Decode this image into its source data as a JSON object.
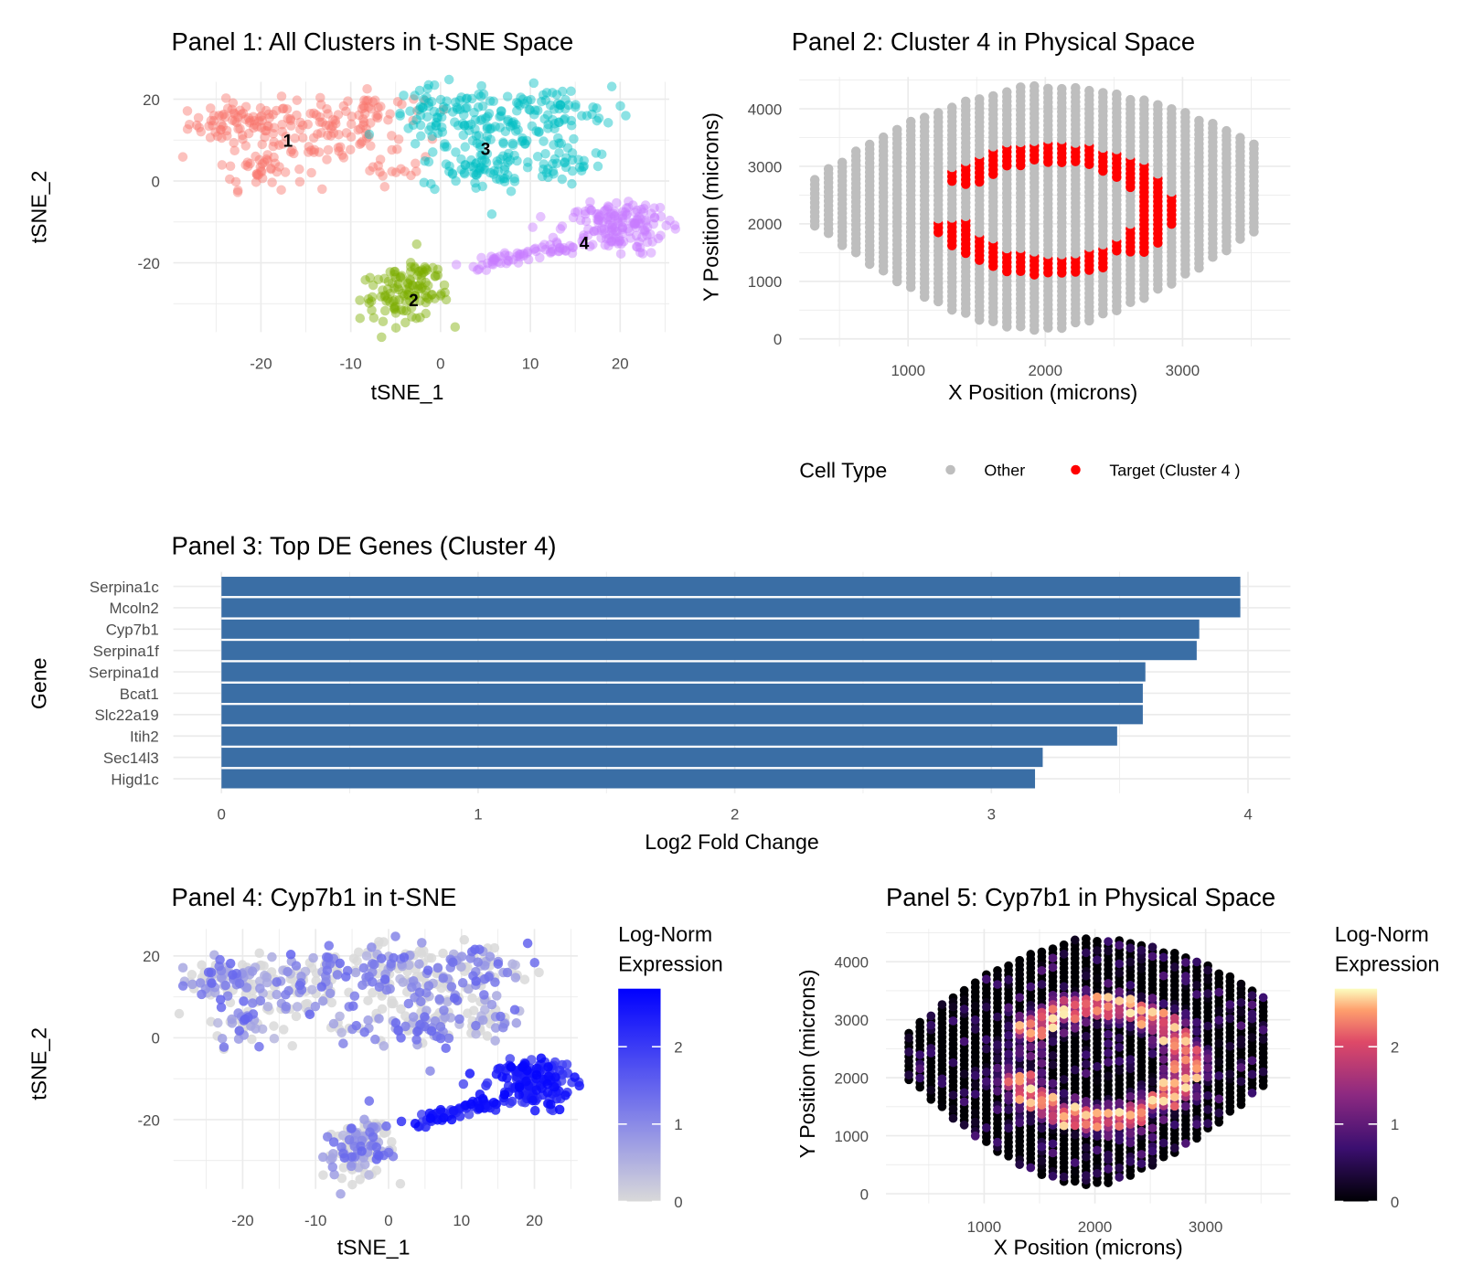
{
  "chart_data": [
    {
      "type": "scatter",
      "title": "Panel 1: All Clusters in t-SNE Space",
      "xlabel": "tSNE_1",
      "ylabel": "tSNE_2",
      "xlim": [
        -28,
        24
      ],
      "ylim": [
        -37,
        26
      ],
      "xticks": [
        "-20",
        "-10",
        "0",
        "10",
        "20"
      ],
      "yticks": [
        "20",
        "0",
        "-20"
      ],
      "grid": true,
      "clusters": [
        {
          "id": "1",
          "color": "#F8766D",
          "label_at": [
            -17,
            10
          ]
        },
        {
          "id": "2",
          "color": "#7CAE00",
          "label_at": [
            -3,
            -29
          ]
        },
        {
          "id": "3",
          "color": "#00BFC4",
          "label_at": [
            5,
            8
          ]
        },
        {
          "id": "4",
          "color": "#C77CFF",
          "label_at": [
            16,
            -15
          ]
        }
      ]
    },
    {
      "type": "scatter",
      "title": "Panel 2: Cluster 4 in Physical Space",
      "xlabel": "X Position (microns)",
      "ylabel": "Y Position (microns)",
      "xlim": [
        200,
        3700
      ],
      "ylim": [
        0,
        4600
      ],
      "xticks": [
        "1000",
        "2000",
        "3000"
      ],
      "yticks": [
        "0",
        "1000",
        "2000",
        "3000",
        "4000"
      ],
      "grid": true,
      "legend": {
        "title": "Cell Type",
        "placement": "bottom",
        "items": [
          {
            "label": "Other",
            "color": "#BEBEBE"
          },
          {
            "label": "Target (Cluster 4 )",
            "color": "#FF0000"
          }
        ]
      }
    },
    {
      "type": "bar",
      "orientation": "horizontal",
      "title": "Panel 3: Top DE Genes (Cluster 4)",
      "xlabel": "Log2 Fold Change",
      "ylabel": "Gene",
      "xlim": [
        0,
        4.1
      ],
      "xticks": [
        "0",
        "1",
        "2",
        "3",
        "4"
      ],
      "bar_color": "#3A6EA5",
      "categories": [
        "Serpina1c",
        "Mcoln2",
        "Cyp7b1",
        "Serpina1f",
        "Serpina1d",
        "Bcat1",
        "Slc22a19",
        "Itih2",
        "Sec14l3",
        "Higd1c"
      ],
      "values": [
        3.97,
        3.97,
        3.81,
        3.8,
        3.6,
        3.59,
        3.59,
        3.49,
        3.2,
        3.17
      ]
    },
    {
      "type": "scatter",
      "title": "Panel 4: Cyp7b1 in t-SNE",
      "xlabel": "tSNE_1",
      "ylabel": "tSNE_2",
      "xlim": [
        -28,
        24
      ],
      "ylim": [
        -37,
        26
      ],
      "xticks": [
        "-20",
        "-10",
        "0",
        "10",
        "20"
      ],
      "yticks": [
        "20",
        "0",
        "-20"
      ],
      "grid": true,
      "colorbar": {
        "title_line1": "Log-Norm",
        "title_line2": "Expression",
        "ticks": [
          "0",
          "1",
          "2"
        ],
        "range": [
          0,
          2.75
        ],
        "low": "#D9D9D9",
        "high": "#0000FF"
      }
    },
    {
      "type": "scatter",
      "title": "Panel 5: Cyp7b1 in Physical Space",
      "xlabel": "X Position (microns)",
      "ylabel": "Y Position (microns)",
      "xlim": [
        200,
        3700
      ],
      "ylim": [
        0,
        4600
      ],
      "xticks": [
        "1000",
        "2000",
        "3000"
      ],
      "yticks": [
        "0",
        "1000",
        "2000",
        "3000",
        "4000"
      ],
      "grid": true,
      "colorbar": {
        "title_line1": "Log-Norm",
        "title_line2": "Expression",
        "ticks": [
          "0",
          "1",
          "2"
        ],
        "range": [
          0,
          2.75
        ],
        "palette": "magma"
      }
    }
  ]
}
